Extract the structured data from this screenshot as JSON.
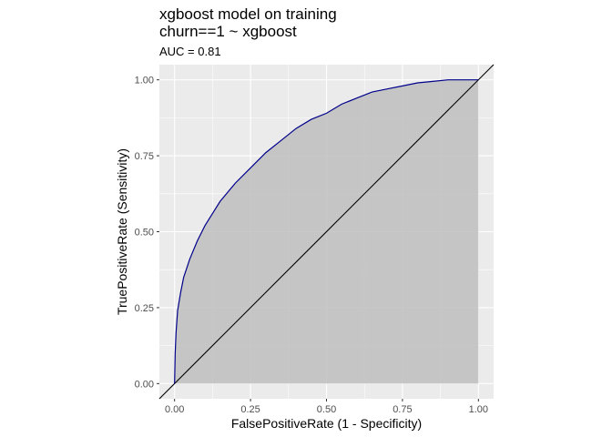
{
  "chart_data": {
    "type": "area",
    "title": "xgboost model on training",
    "title_line2": "churn==1 ~ xgboost",
    "subtitle": "AUC = 0.81",
    "xlabel": "FalsePositiveRate (1 - Specificity)",
    "ylabel": "TruePositiveRate (Sensitivity)",
    "xlim": [
      -0.05,
      1.05
    ],
    "ylim": [
      -0.05,
      1.05
    ],
    "x_ticks": [
      "0.00",
      "0.25",
      "0.50",
      "0.75",
      "1.00"
    ],
    "y_ticks": [
      "0.00",
      "0.25",
      "0.50",
      "0.75",
      "1.00"
    ],
    "grid": true,
    "legend": "none",
    "colors": {
      "panel": "#ebebeb",
      "grid": "#ffffff",
      "fill": "#bebebe",
      "roc_line": "#00008b",
      "diagonal": "#000000"
    },
    "series": [
      {
        "x": [
          0.0,
          0.002,
          0.005,
          0.01,
          0.02,
          0.03,
          0.04,
          0.05,
          0.075,
          0.1,
          0.125,
          0.15,
          0.175,
          0.2,
          0.25,
          0.3,
          0.35,
          0.4,
          0.45,
          0.5,
          0.55,
          0.6,
          0.65,
          0.7,
          0.75,
          0.8,
          0.85,
          0.9,
          0.95,
          1.0
        ],
        "y": [
          0.0,
          0.1,
          0.17,
          0.24,
          0.3,
          0.35,
          0.38,
          0.41,
          0.47,
          0.52,
          0.56,
          0.6,
          0.63,
          0.66,
          0.71,
          0.76,
          0.8,
          0.84,
          0.87,
          0.89,
          0.92,
          0.94,
          0.96,
          0.97,
          0.98,
          0.99,
          0.995,
          1.0,
          1.0,
          1.0
        ]
      }
    ],
    "reference_line": {
      "x": [
        0.0,
        1.0
      ],
      "y": [
        0.0,
        1.0
      ]
    }
  }
}
